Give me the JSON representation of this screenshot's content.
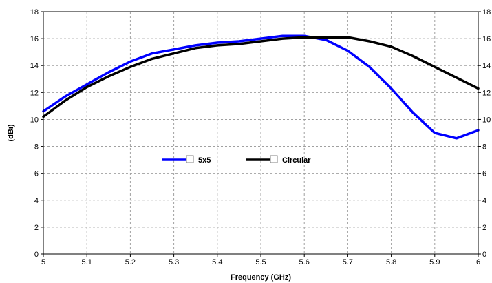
{
  "chart_data": {
    "type": "line",
    "title": "",
    "xlabel": "Frequency (GHz)",
    "ylabel": "(dBi)",
    "xlim": [
      5,
      6
    ],
    "ylim": [
      0,
      18
    ],
    "x_ticks": [
      "5",
      "5.1",
      "5.2",
      "5.3",
      "5.4",
      "5.5",
      "5.6",
      "5.7",
      "5.8",
      "5.9",
      "6"
    ],
    "y_ticks": [
      "0",
      "2",
      "4",
      "6",
      "8",
      "10",
      "12",
      "14",
      "16",
      "18"
    ],
    "right_y_ticks": [
      "0",
      "2",
      "4",
      "6",
      "8",
      "10",
      "12",
      "14",
      "16",
      "18"
    ],
    "grid": true,
    "legend_position": "center",
    "series": [
      {
        "name": "5x5",
        "color": "#0000ff",
        "x": [
          5.0,
          5.05,
          5.1,
          5.15,
          5.2,
          5.25,
          5.3,
          5.35,
          5.4,
          5.45,
          5.5,
          5.55,
          5.6,
          5.65,
          5.7,
          5.75,
          5.8,
          5.85,
          5.9,
          5.95,
          6.0
        ],
        "y": [
          10.6,
          11.7,
          12.6,
          13.5,
          14.3,
          14.9,
          15.2,
          15.5,
          15.7,
          15.8,
          16.0,
          16.2,
          16.2,
          15.9,
          15.1,
          13.9,
          12.3,
          10.5,
          9.0,
          8.6,
          9.2
        ]
      },
      {
        "name": "Circular",
        "color": "#000000",
        "x": [
          5.0,
          5.05,
          5.1,
          5.15,
          5.2,
          5.25,
          5.3,
          5.35,
          5.4,
          5.45,
          5.5,
          5.55,
          5.6,
          5.65,
          5.7,
          5.75,
          5.8,
          5.85,
          5.9,
          5.95,
          6.0
        ],
        "y": [
          10.2,
          11.4,
          12.4,
          13.2,
          13.9,
          14.5,
          14.9,
          15.3,
          15.5,
          15.6,
          15.8,
          16.0,
          16.1,
          16.1,
          16.1,
          15.8,
          15.4,
          14.7,
          13.9,
          13.1,
          12.3
        ]
      }
    ]
  }
}
